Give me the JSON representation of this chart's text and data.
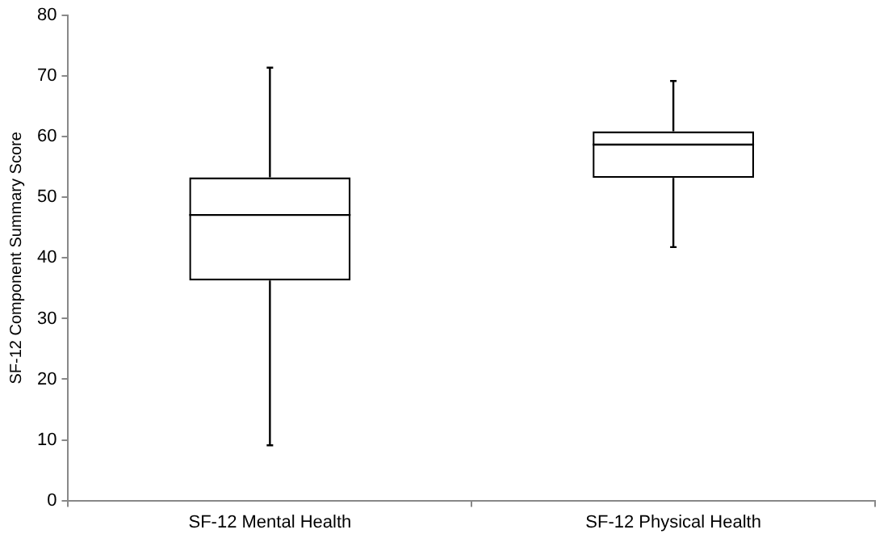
{
  "chart_data": {
    "type": "box",
    "ylabel": "SF-12 Component Summary Score",
    "categories": [
      "SF-12 Mental Health",
      "SF-12 Physical Health"
    ],
    "boxes": [
      {
        "low": 9.1,
        "q1": 36.3,
        "median": 47.1,
        "q3": 53.3,
        "high": 71.4
      },
      {
        "low": 41.8,
        "q1": 53.2,
        "median": 58.7,
        "q3": 60.9,
        "high": 69.2
      }
    ],
    "color": "#000000",
    "ylim": [
      0,
      80
    ],
    "yticks": [
      0,
      10,
      20,
      30,
      40,
      50,
      60,
      70,
      80
    ],
    "grid": false,
    "legend": false
  }
}
